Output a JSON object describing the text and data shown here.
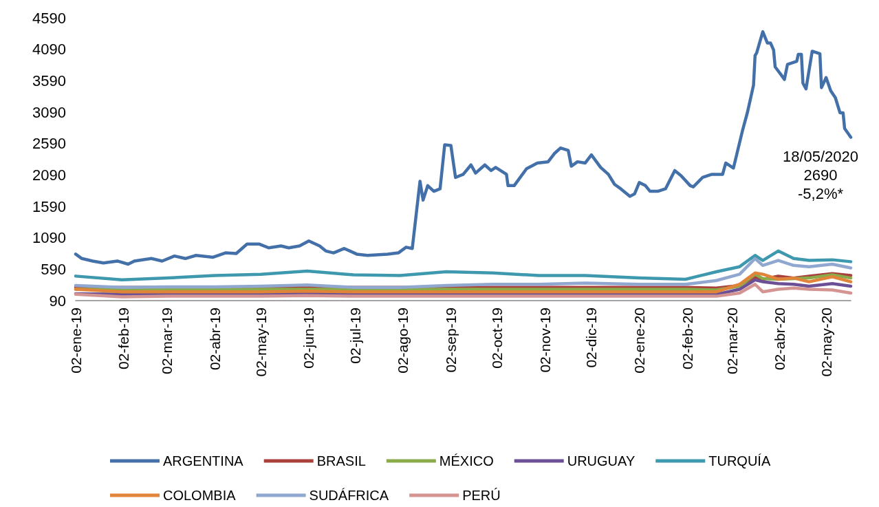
{
  "chart_data": {
    "type": "line",
    "x": [
      "2019-01-02",
      "2019-02-01",
      "2019-03-03",
      "2019-04-02",
      "2019-05-02",
      "2019-06-01",
      "2019-07-01",
      "2019-07-31",
      "2019-08-30",
      "2019-09-29",
      "2019-10-29",
      "2019-11-28",
      "2020-01-02",
      "2020-02-01",
      "2020-02-21",
      "2020-03-07",
      "2020-03-17",
      "2020-03-22",
      "2020-04-01",
      "2020-04-11",
      "2020-04-21",
      "2020-05-06",
      "2020-05-18"
    ],
    "series": [
      {
        "name": "ARGENTINA",
        "color": "#4470aa",
        "x": [
          "2019-01-02",
          "2019-01-06",
          "2019-01-13",
          "2019-01-20",
          "2019-01-29",
          "2019-02-05",
          "2019-02-09",
          "2019-02-20",
          "2019-02-27",
          "2019-03-07",
          "2019-03-14",
          "2019-03-21",
          "2019-04-01",
          "2019-04-09",
          "2019-04-16",
          "2019-04-23",
          "2019-05-01",
          "2019-05-07",
          "2019-05-15",
          "2019-05-20",
          "2019-05-27",
          "2019-06-02",
          "2019-06-09",
          "2019-06-13",
          "2019-06-18",
          "2019-06-25",
          "2019-07-03",
          "2019-07-10",
          "2019-07-23",
          "2019-07-30",
          "2019-08-04",
          "2019-08-08",
          "2019-08-13",
          "2019-08-15",
          "2019-08-18",
          "2019-08-22",
          "2019-08-26",
          "2019-08-29",
          "2019-09-02",
          "2019-09-05",
          "2019-09-10",
          "2019-09-15",
          "2019-09-18",
          "2019-09-24",
          "2019-09-28",
          "2019-10-01",
          "2019-10-08",
          "2019-10-09",
          "2019-10-13",
          "2019-10-21",
          "2019-10-28",
          "2019-11-04",
          "2019-11-08",
          "2019-11-12",
          "2019-11-17",
          "2019-11-19",
          "2019-11-23",
          "2019-11-28",
          "2019-12-02",
          "2019-12-08",
          "2019-12-13",
          "2019-12-17",
          "2019-12-21",
          "2019-12-27",
          "2019-12-30",
          "2020-01-02",
          "2020-01-06",
          "2020-01-09",
          "2020-01-14",
          "2020-01-19",
          "2020-01-25",
          "2020-01-29",
          "2020-02-04",
          "2020-02-06",
          "2020-02-12",
          "2020-02-18",
          "2020-02-25",
          "2020-02-27",
          "2020-03-03",
          "2020-03-09",
          "2020-03-12",
          "2020-03-16",
          "2020-03-17",
          "2020-03-18",
          "2020-03-22",
          "2020-03-25",
          "2020-03-27",
          "2020-03-29",
          "2020-03-30",
          "2020-04-03",
          "2020-04-05",
          "2020-04-07",
          "2020-04-13",
          "2020-04-14",
          "2020-04-16",
          "2020-04-17",
          "2020-04-19",
          "2020-04-23",
          "2020-04-28",
          "2020-04-29",
          "2020-05-02",
          "2020-05-05",
          "2020-05-08",
          "2020-05-11",
          "2020-05-13",
          "2020-05-14",
          "2020-05-18"
        ],
        "values": [
          830,
          760,
          720,
          690,
          720,
          670,
          720,
          760,
          720,
          800,
          760,
          810,
          780,
          850,
          840,
          990,
          990,
          930,
          960,
          930,
          960,
          1040,
          960,
          880,
          850,
          920,
          830,
          810,
          830,
          850,
          940,
          920,
          1990,
          1690,
          1920,
          1830,
          1870,
          2570,
          2560,
          2050,
          2100,
          2250,
          2120,
          2250,
          2160,
          2210,
          2100,
          1920,
          1920,
          2190,
          2280,
          2300,
          2430,
          2520,
          2480,
          2230,
          2300,
          2280,
          2410,
          2210,
          2100,
          1940,
          1870,
          1750,
          1790,
          1970,
          1920,
          1830,
          1830,
          1870,
          2160,
          2080,
          1920,
          1900,
          2050,
          2100,
          2100,
          2280,
          2200,
          2810,
          3080,
          3520,
          3990,
          4030,
          4370,
          4190,
          4190,
          4080,
          3810,
          3680,
          3610,
          3850,
          3900,
          4010,
          4010,
          3550,
          3460,
          4060,
          4020,
          3480,
          3640,
          3430,
          3320,
          3080,
          3080,
          2830,
          2690
        ]
      },
      {
        "name": "BRASIL",
        "color": "#a9403c",
        "values": [
          300,
          300,
          300,
          300,
          300,
          310,
          300,
          300,
          300,
          300,
          300,
          300,
          300,
          300,
          290,
          330,
          470,
          430,
          480,
          450,
          480,
          520,
          490
        ]
      },
      {
        "name": "MÉXICO",
        "color": "#8aab4a",
        "values": [
          270,
          270,
          270,
          270,
          270,
          270,
          270,
          270,
          270,
          270,
          270,
          270,
          270,
          270,
          260,
          320,
          510,
          440,
          430,
          440,
          450,
          500,
          450
        ]
      },
      {
        "name": "URUGUAY",
        "color": "#6b5096",
        "values": [
          200,
          190,
          190,
          190,
          190,
          200,
          190,
          190,
          190,
          190,
          190,
          190,
          190,
          190,
          190,
          270,
          420,
          390,
          360,
          350,
          320,
          360,
          320
        ]
      },
      {
        "name": "TURQUÍA",
        "color": "#3f99ae",
        "values": [
          480,
          420,
          450,
          490,
          510,
          560,
          500,
          490,
          550,
          530,
          490,
          490,
          450,
          430,
          550,
          630,
          810,
          730,
          880,
          760,
          730,
          740,
          710
        ]
      },
      {
        "name": "COLOMBIA",
        "color": "#e0843a",
        "values": [
          270,
          230,
          230,
          230,
          230,
          240,
          230,
          230,
          230,
          230,
          230,
          230,
          230,
          230,
          230,
          350,
          530,
          510,
          430,
          450,
          390,
          470,
          390
        ]
      },
      {
        "name": "SUDÁFRICA",
        "color": "#90a8d0",
        "values": [
          330,
          300,
          310,
          310,
          320,
          340,
          300,
          300,
          330,
          350,
          350,
          370,
          350,
          350,
          410,
          510,
          760,
          650,
          730,
          650,
          630,
          670,
          610
        ]
      },
      {
        "name": "PERÚ",
        "color": "#d49592",
        "values": [
          190,
          150,
          160,
          160,
          160,
          170,
          160,
          160,
          160,
          160,
          160,
          160,
          160,
          160,
          160,
          210,
          350,
          230,
          270,
          290,
          270,
          260,
          210
        ]
      }
    ],
    "xlim": [
      "2019-01-02",
      "2020-05-18"
    ],
    "xticks": [
      {
        "value": "2019-01-02",
        "label": "02-ene-19"
      },
      {
        "value": "2019-02-02",
        "label": "02-feb-19"
      },
      {
        "value": "2019-03-02",
        "label": "02-mar-19"
      },
      {
        "value": "2019-04-02",
        "label": "02-abr-19"
      },
      {
        "value": "2019-05-02",
        "label": "02-may-19"
      },
      {
        "value": "2019-06-02",
        "label": "02-jun-19"
      },
      {
        "value": "2019-07-02",
        "label": "02-jul-19"
      },
      {
        "value": "2019-08-02",
        "label": "02-ago-19"
      },
      {
        "value": "2019-09-02",
        "label": "02-sep-19"
      },
      {
        "value": "2019-10-02",
        "label": "02-oct-19"
      },
      {
        "value": "2019-11-02",
        "label": "02-nov-19"
      },
      {
        "value": "2019-12-02",
        "label": "02-dic-19"
      },
      {
        "value": "2020-01-02",
        "label": "02-ene-20"
      },
      {
        "value": "2020-02-02",
        "label": "02-feb-20"
      },
      {
        "value": "2020-03-02",
        "label": "02-mar-20"
      },
      {
        "value": "2020-04-02",
        "label": "02-abr-20"
      },
      {
        "value": "2020-05-02",
        "label": "02-may-20"
      }
    ],
    "ylim": [
      90,
      4590
    ],
    "yticks": [
      90,
      590,
      1090,
      1590,
      2090,
      2590,
      3090,
      3590,
      4090,
      4590
    ],
    "annotations": [
      {
        "text": "18/05/2020\n2690\n-5,2%*",
        "x": "2020-05-18",
        "y": 2690
      }
    ],
    "grid": false,
    "legend": "bottom",
    "marker": "none",
    "line_style": "solid"
  }
}
